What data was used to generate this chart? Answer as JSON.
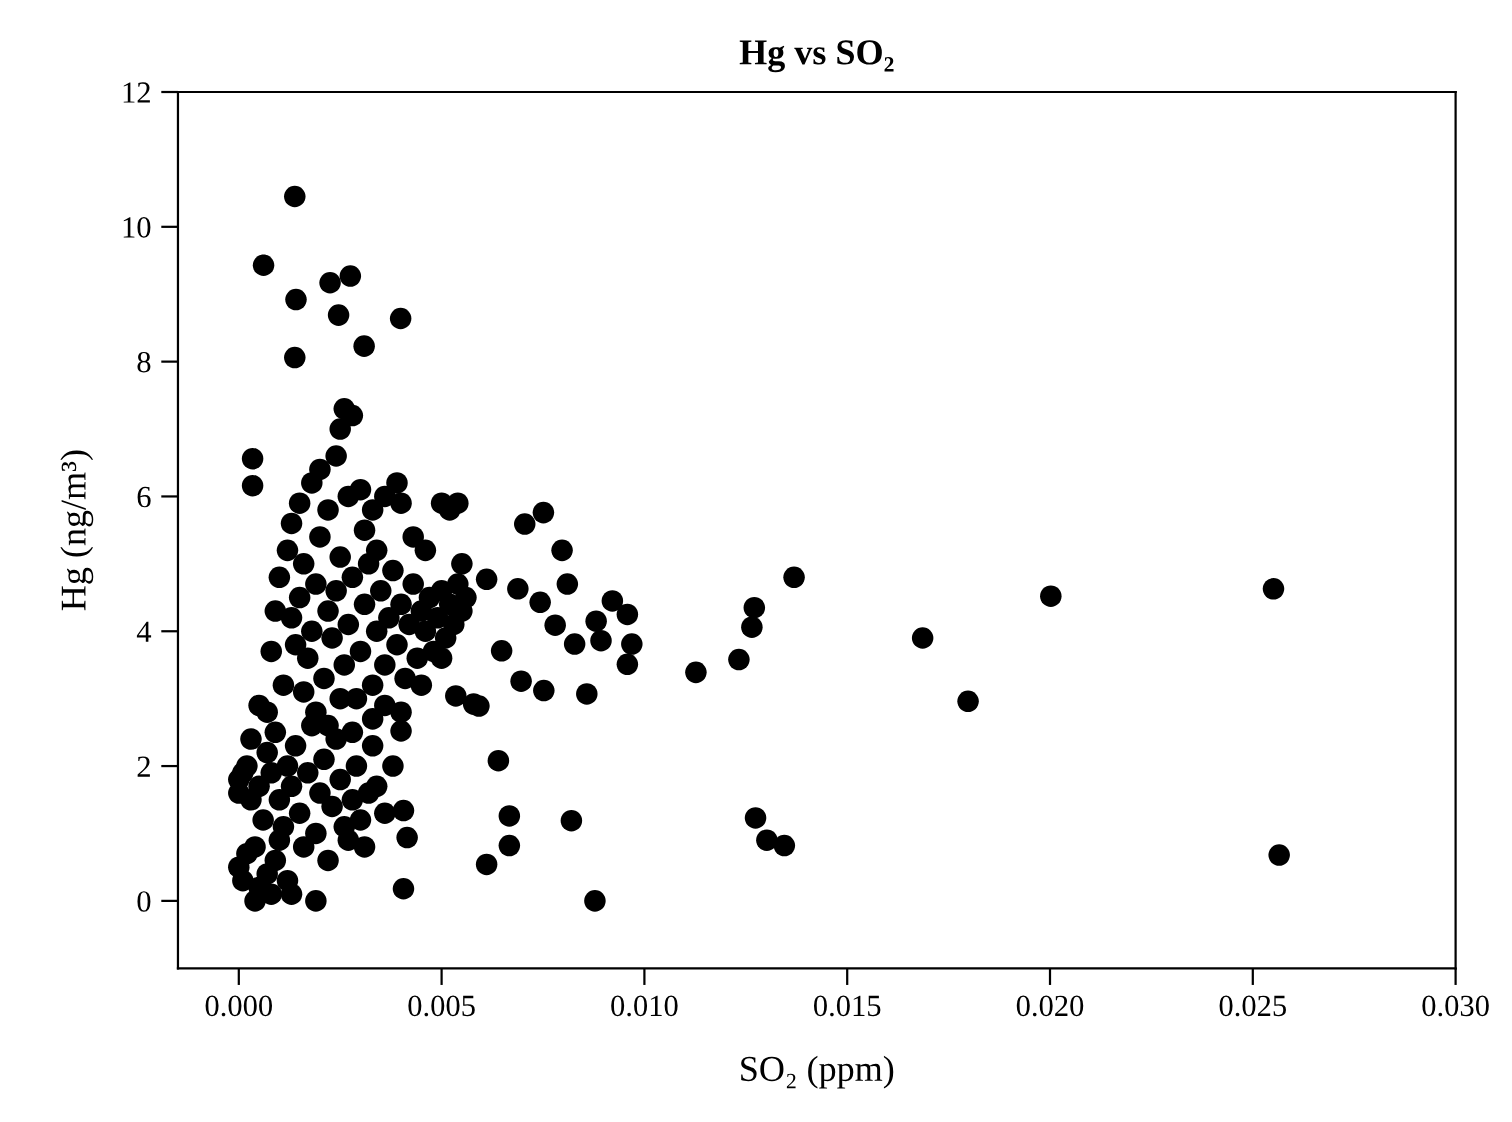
{
  "chart_data": {
    "type": "scatter",
    "title": "Hg vs SO₂",
    "xlabel": "SO₂ (ppm)",
    "ylabel": "Hg (ng/m³)",
    "xlim": [
      -0.0015,
      0.03
    ],
    "ylim": [
      -1,
      12
    ],
    "xticks": [
      {
        "value": 0,
        "label": "0.000"
      },
      {
        "value": 0.005,
        "label": "0.005"
      },
      {
        "value": 0.01,
        "label": "0.010"
      },
      {
        "value": 0.015,
        "label": "0.015"
      },
      {
        "value": 0.02,
        "label": "0.020"
      },
      {
        "value": 0.025,
        "label": "0.025"
      },
      {
        "value": 0.03,
        "label": "0.030"
      }
    ],
    "yticks": [
      0,
      2,
      4,
      6,
      8,
      10,
      12
    ],
    "grid": false,
    "marker": "circle",
    "series": [
      {
        "color": "#000000",
        "x": [
          0.00138,
          0.00061,
          0.00141,
          0.00225,
          0.00275,
          0.00246,
          0.00399,
          0.00309,
          0.00138,
          0.00034,
          0.00034,
          0.0,
          0.0001,
          0.0002,
          0.0,
          0.0001,
          0.0002,
          0.0,
          0.0003,
          0.0004,
          0.0005,
          0.0004,
          0.0007,
          0.0008,
          0.0009,
          0.001,
          0.0012,
          0.0013,
          0.0006,
          0.0005,
          0.0007,
          0.0008,
          0.0009,
          0.001,
          0.0011,
          0.0012,
          0.0013,
          0.0014,
          0.0015,
          0.0016,
          0.0017,
          0.0018,
          0.0019,
          0.002,
          0.0021,
          0.0022,
          0.0023,
          0.0024,
          0.0025,
          0.0026,
          0.0027,
          0.0028,
          0.0029,
          0.003,
          0.0031,
          0.0032,
          0.0033,
          0.0034,
          0.0036,
          0.0038,
          0.0007,
          0.0003,
          0.0019,
          0.0005,
          0.001,
          0.0012,
          0.0013,
          0.0014,
          0.0015,
          0.0016,
          0.0017,
          0.0018,
          0.0019,
          0.002,
          0.0021,
          0.0022,
          0.0023,
          0.0024,
          0.0025,
          0.0026,
          0.0027,
          0.0028,
          0.0029,
          0.003,
          0.0031,
          0.0032,
          0.0033,
          0.0034,
          0.0035,
          0.0036,
          0.0037,
          0.0038,
          0.0039,
          0.004,
          0.0041,
          0.0042,
          0.0043,
          0.0044,
          0.0045,
          0.0046,
          0.0047,
          0.0048,
          0.0049,
          0.005,
          0.0051,
          0.0052,
          0.0053,
          0.0054,
          0.0055,
          0.0013,
          0.0015,
          0.0018,
          0.002,
          0.0022,
          0.0024,
          0.0025,
          0.0026,
          0.0027,
          0.0028,
          0.003,
          0.0031,
          0.0033,
          0.0034,
          0.0036,
          0.0039,
          0.004,
          0.0046,
          0.005,
          0.0052,
          0.0054,
          0.0043,
          0.0019,
          0.0022,
          0.0025,
          0.0028,
          0.0033,
          0.0036,
          0.004,
          0.0045,
          0.005,
          0.0008,
          0.0009,
          0.0011,
          0.0016,
          0.0055,
          0.0056,
          0.00705,
          0.00751,
          0.00797,
          0.0081,
          0.00688,
          0.00611,
          0.00743,
          0.00921,
          0.00958,
          0.00881,
          0.00893,
          0.00969,
          0.00958,
          0.00828,
          0.0078,
          0.00648,
          0.00696,
          0.00752,
          0.00858,
          0.00592,
          0.01127,
          0.01233,
          0.01265,
          0.01271,
          0.01369,
          0.01686,
          0.01798,
          0.02002,
          0.02551,
          0.02565,
          0.0064,
          0.00667,
          0.00667,
          0.00611,
          0.0082,
          0.00878,
          0.01274,
          0.01302,
          0.01345,
          0.00535,
          0.00579,
          0.004,
          0.00406,
          0.00415,
          0.00406
        ],
        "values": [
          10.45,
          9.43,
          8.92,
          9.17,
          9.27,
          8.69,
          8.64,
          8.23,
          8.06,
          6.56,
          6.16,
          0.5,
          0.3,
          0.7,
          1.6,
          1.9,
          2.0,
          1.8,
          1.5,
          0.8,
          0.2,
          0.0,
          0.4,
          0.1,
          0.6,
          0.9,
          0.3,
          0.1,
          1.2,
          1.7,
          2.2,
          1.9,
          2.5,
          1.5,
          1.1,
          2.0,
          1.7,
          2.3,
          1.3,
          0.8,
          1.9,
          2.6,
          1.0,
          1.6,
          2.1,
          0.6,
          1.4,
          2.4,
          1.8,
          1.1,
          0.9,
          1.5,
          2.0,
          1.2,
          0.8,
          1.6,
          2.3,
          1.7,
          1.3,
          2.0,
          2.8,
          2.4,
          0.0,
          2.9,
          4.8,
          5.2,
          4.2,
          3.8,
          4.5,
          5.0,
          3.6,
          4.0,
          4.7,
          5.4,
          3.3,
          4.3,
          3.9,
          4.6,
          5.1,
          3.5,
          4.1,
          4.8,
          3.0,
          3.7,
          4.4,
          5.0,
          3.2,
          4.0,
          4.6,
          3.5,
          4.2,
          4.9,
          3.8,
          4.4,
          3.3,
          4.1,
          4.7,
          3.6,
          4.3,
          4.0,
          4.5,
          3.7,
          4.2,
          4.6,
          3.9,
          4.4,
          4.1,
          4.7,
          4.3,
          5.6,
          5.9,
          6.2,
          6.4,
          5.8,
          6.6,
          7.0,
          7.3,
          6.0,
          7.2,
          6.1,
          5.5,
          5.8,
          5.2,
          6.0,
          6.2,
          5.9,
          5.2,
          5.9,
          5.8,
          5.9,
          5.4,
          2.8,
          2.6,
          3.0,
          2.5,
          2.7,
          2.9,
          2.8,
          3.2,
          3.6,
          3.7,
          4.3,
          3.2,
          3.1,
          5.0,
          4.5,
          5.59,
          5.76,
          5.2,
          4.7,
          4.63,
          4.77,
          4.43,
          4.45,
          4.25,
          4.15,
          3.86,
          3.81,
          3.51,
          3.81,
          4.09,
          3.71,
          3.26,
          3.12,
          3.07,
          2.89,
          3.39,
          3.58,
          4.06,
          4.35,
          4.8,
          3.9,
          2.96,
          4.52,
          4.63,
          0.68,
          2.08,
          1.26,
          0.82,
          0.54,
          1.19,
          0.0,
          1.23,
          0.9,
          0.82,
          3.04,
          2.92,
          2.52,
          0.18,
          0.94,
          1.34
        ]
      }
    ]
  }
}
